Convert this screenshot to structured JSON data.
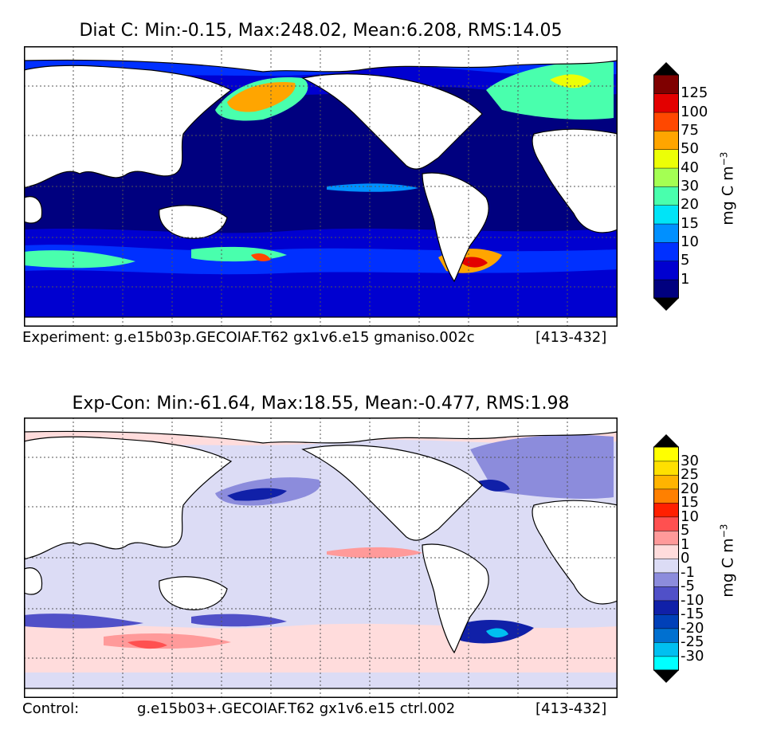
{
  "panels": [
    {
      "title": "Diat C: Min:-0.15, Max:248.02, Mean:6.208, RMS:14.05",
      "footer": {
        "label": "Experiment:",
        "case": "g.e15b03p.GECOIAF.T62 gx1v6.e15 gmaniso.002c",
        "years": "[413-432]"
      },
      "colorbar": {
        "unit_text": "mg C m",
        "unit_exp": "−3",
        "levels": [
          "1",
          "5",
          "10",
          "15",
          "20",
          "30",
          "40",
          "50",
          "75",
          "100",
          "125"
        ],
        "colors": [
          "#00007f",
          "#0000d0",
          "#0030ff",
          "#0090ff",
          "#00e4f7",
          "#49ffad",
          "#a4ff53",
          "#ecff06",
          "#ffa500",
          "#ff4800",
          "#e30000",
          "#7f0000"
        ],
        "extend": "both"
      }
    },
    {
      "title": "Exp-Con: Min:-61.64, Max:18.55, Mean:-0.477, RMS:1.98",
      "footer": {
        "label": "Control:",
        "case": "g.e15b03+.GECOIAF.T62 gx1v6.e15 ctrl.002",
        "years": "[413-432]"
      },
      "colorbar": {
        "unit_text": "mg C m",
        "unit_exp": "−3",
        "levels": [
          "-30",
          "-25",
          "-20",
          "-15",
          "-10",
          "-5",
          "-1",
          "0",
          "1",
          "5",
          "10",
          "15",
          "20",
          "25",
          "30"
        ],
        "colors": [
          "#00ffff",
          "#00c0f0",
          "#0070d0",
          "#0040b8",
          "#1020a8",
          "#5050c8",
          "#8c8cdc",
          "#dcdcf5",
          "#ffdcdc",
          "#ff9a9a",
          "#ff5050",
          "#ff2000",
          "#ff8000",
          "#ffb400",
          "#ffe000",
          "#ffff00"
        ],
        "extend": "both"
      }
    }
  ],
  "chart_data": [
    {
      "type": "heatmap",
      "title": "Diat C: Min:-0.15, Max:248.02, Mean:6.208, RMS:14.05",
      "variable": "Diat C",
      "stats": {
        "min": -0.15,
        "max": 248.02,
        "mean": 6.208,
        "rms": 14.05
      },
      "units": "mg C m^-3",
      "contour_levels": [
        1,
        5,
        10,
        15,
        20,
        30,
        40,
        50,
        75,
        100,
        125
      ],
      "grid": true,
      "colorbar": "right"
    },
    {
      "type": "heatmap",
      "title": "Exp-Con: Min:-61.64, Max:18.55, Mean:-0.477, RMS:1.98",
      "variable": "Exp-Con",
      "stats": {
        "min": -61.64,
        "max": 18.55,
        "mean": -0.477,
        "rms": 1.98
      },
      "units": "mg C m^-3",
      "contour_levels": [
        -30,
        -25,
        -20,
        -15,
        -10,
        -5,
        -1,
        0,
        1,
        5,
        10,
        15,
        20,
        25,
        30
      ],
      "grid": true,
      "colorbar": "right"
    }
  ]
}
